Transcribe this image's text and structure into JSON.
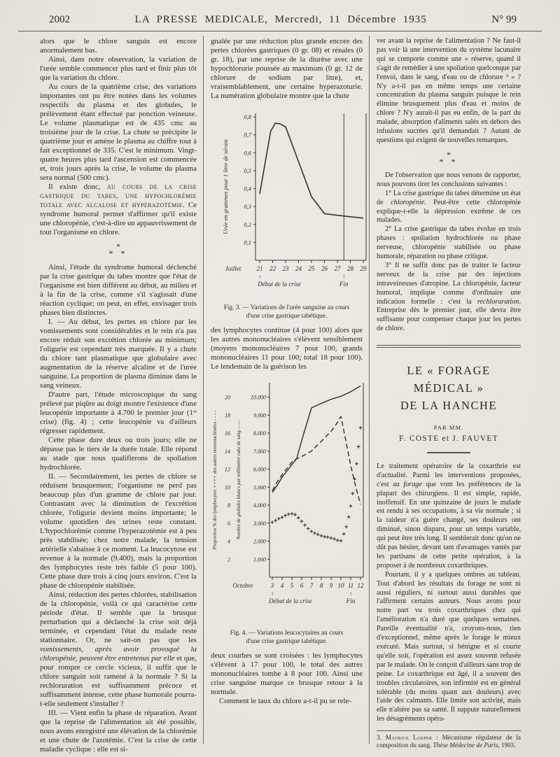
{
  "header": {
    "page_number": "2002",
    "title": "LA PRESSE MEDICALE, Mercredi, 11 Décembre 1935",
    "issue": "N° 99"
  },
  "asterism": {
    "line1": "*",
    "line2": "* *"
  },
  "chart_data": [
    {
      "type": "line",
      "fig_id": "fig3",
      "caption": "Fig. 3. — Variations de l'urée sanguine au cours d'une crise gastrique tabétique.",
      "ylabel": "Urée en grammes pour 1 litre de sérum",
      "y_ticks": [
        "0,1",
        "0,2",
        "0,3",
        "0,4",
        "0,5",
        "0,6",
        "0,7",
        "0,8"
      ],
      "ylim": [
        0,
        0.82
      ],
      "x_prefix": "Juillet",
      "x_ticks": [
        21,
        22,
        23,
        24,
        25,
        26,
        27,
        28,
        29
      ],
      "xlim": [
        21,
        29
      ],
      "end_line_x": 27.5,
      "annotations": {
        "start": "Début de la crise",
        "start_x": 21,
        "end": "Fin",
        "end_x": 27.5,
        "arrow": "↑"
      },
      "grid": false,
      "series": [
        {
          "name": "urée sanguine",
          "style": "solid",
          "points": [
            [
              21,
              0.37
            ],
            [
              21.85,
              0.72
            ],
            [
              22.2,
              0.765
            ],
            [
              22.55,
              0.762
            ],
            [
              23,
              0.745
            ],
            [
              24,
              0.55
            ],
            [
              25,
              0.355
            ],
            [
              26,
              0.26
            ],
            [
              27,
              0.251
            ],
            [
              28,
              0.243
            ],
            [
              29,
              0.235
            ]
          ]
        }
      ]
    },
    {
      "type": "line",
      "fig_id": "fig4",
      "caption": "Fig. 4. — Variations leucocytaires au cours d'une crise gastrique tabétique.",
      "left_axis_outer": {
        "label": "Proportion % des lymphocytes ++++  des autres mononucléaires - - - -",
        "ticks": [
          2,
          4,
          6,
          8,
          10,
          12,
          14,
          16,
          18,
          20
        ],
        "lim": [
          0,
          21.6
        ]
      },
      "left_axis_inner": {
        "label": "Nombre de globules blancs par millimètre cube de sang ——",
        "ticks": [
          "1.000",
          "2.000",
          "3.000",
          "4.000",
          "5.000",
          "6.000",
          "7.000",
          "8.000",
          "9.000",
          "10.000"
        ],
        "lim": [
          0,
          10800
        ]
      },
      "x_prefix": "Octobre",
      "x_ticks": [
        3,
        4,
        5,
        6,
        7,
        8,
        9,
        10,
        11,
        12
      ],
      "xlim": [
        3,
        12
      ],
      "annotations": {
        "start": "Début de la crise",
        "start_x": 3,
        "end": "Fin",
        "end_x": 11,
        "arrow": "↑"
      },
      "grid": false,
      "series": [
        {
          "name": "globules blancs par mm3",
          "style": "solid",
          "scale": "count",
          "points": [
            [
              3,
              4700
            ],
            [
              3.5,
              5100
            ],
            [
              4,
              5550
            ],
            [
              5,
              6250
            ],
            [
              5.5,
              6600
            ],
            [
              6,
              7600
            ],
            [
              7,
              9400
            ],
            [
              7.3,
              9480
            ],
            [
              8,
              9650
            ],
            [
              9,
              9880
            ],
            [
              10,
              10050
            ],
            [
              11,
              10300
            ],
            [
              12,
              10620
            ]
          ]
        },
        {
          "name": "autres mononucléaires %",
          "style": "dashed",
          "scale": "percent",
          "points": [
            [
              3,
              9.6
            ],
            [
              3.5,
              10.6
            ],
            [
              4,
              11.4
            ],
            [
              4.5,
              12.1
            ],
            [
              5,
              12.8
            ],
            [
              5.4,
              13.1
            ],
            [
              6,
              13.4
            ],
            [
              7,
              14.0
            ],
            [
              8,
              15.1
            ],
            [
              9,
              16.2
            ],
            [
              9.6,
              17.1
            ],
            [
              10,
              17.85
            ],
            [
              10.5,
              15.2
            ],
            [
              11,
              12.4
            ],
            [
              11.5,
              10.1
            ],
            [
              12,
              8.1
            ]
          ]
        },
        {
          "name": "lymphocytes %",
          "style": "plus",
          "scale": "percent",
          "points": [
            [
              3,
              6.1
            ],
            [
              3.33,
              6.3
            ],
            [
              3.66,
              6.5
            ],
            [
              4,
              6.65
            ],
            [
              4.33,
              6.85
            ],
            [
              4.66,
              7.0
            ],
            [
              5,
              7.05
            ],
            [
              5.33,
              6.95
            ],
            [
              5.66,
              6.6
            ],
            [
              6,
              6.2
            ],
            [
              6.33,
              5.8
            ],
            [
              6.66,
              5.4
            ],
            [
              7,
              5.1
            ],
            [
              7.33,
              4.9
            ],
            [
              7.66,
              4.75
            ],
            [
              8,
              4.6
            ],
            [
              8.33,
              4.5
            ],
            [
              8.66,
              4.45
            ],
            [
              9,
              4.35
            ],
            [
              9.33,
              4.25
            ],
            [
              9.66,
              4.1
            ],
            [
              10,
              4.05
            ],
            [
              10.3,
              4.8
            ],
            [
              10.55,
              5.6
            ],
            [
              10.8,
              6.7
            ],
            [
              11,
              7.9
            ],
            [
              11.2,
              9.3
            ],
            [
              11.4,
              10.9
            ],
            [
              11.6,
              12.6
            ],
            [
              11.8,
              14.5
            ],
            [
              12,
              16.6
            ]
          ]
        }
      ]
    }
  ],
  "columns": [
    {
      "blocks": [
        {
          "type": "p",
          "noindent": true,
          "text": "alors que le chlore sanguin est encore anormalement bas."
        },
        {
          "type": "p",
          "text": "Ainsi, dans notre observation, la variation de l'urée semble commencer plus tard et finir plus tôt que la variation du chlore."
        },
        {
          "type": "p",
          "text": "Au cours de la quatrième crise, des variations importantes ont pu être notées dans les volumes respectifs du plasma et des globules, le prélèvement étant effectué par ponction veineuse. Le volume plasmatique est de 435 cmc au troisième jour de la crise. La chute se précipite le quatrième jour et amène le plasma au chiffre tout à fait exceptionnel de 335. C'est le minimum. Vingt-quatre heures plus tard l'ascension est commencée et, trois jours après la crise, le volume du plasma sera normal (500 cmc)."
        },
        {
          "type": "p",
          "text": "Il existe donc, {sc}au cours de la crise gastrique du tabes, une hypochlorémie totale avec alcalose et hyperazotémie.{/sc} Ce syndrome humoral permet d'affirmer qu'il existe une chloropénie, c'est-à-dire un appauvrissement de tout l'organisme en chlore."
        },
        {
          "type": "asterism"
        },
        {
          "type": "p",
          "text": "Ainsi, l'étude du syndrome humoral déclenché par la crise gastrique du tabes montre que l'état de l'organisme est bien différent au début, au milieu et à la fin de la crise, comme s'il s'agissait d'une réaction cyclique; on peut, en effet, envisager trois phases bien distinctes."
        },
        {
          "type": "p",
          "text": "I. — Au début, les pertes en chlore par les vomissements sont considérables et le rein n'a pas encore réduit son excrétion chlorée au minimum; l'oligurie est cependant très marquée. Il y a chute du chlore tant plasmatique que globulaire avec augmentation de la réserve alcaline et de l'urée sanguine. La proportion de plasma diminue dans le sang veineux."
        },
        {
          "type": "p",
          "text": "D'autre part, l'étude microscopique du sang prélevé par piqûre au doigt montre l'existence d'une leucopénie importante à 4.700 le premier jour (1ʳᵉ crise) (fig. 4) ; cette leucopénie va d'ailleurs régresser rapidement."
        },
        {
          "type": "p",
          "text": "Cette phase dure deux ou trois jours; elle ne dépasse pas le tiers de la durée totale. Elle répond au stade que nous qualifierons de spoliation hydrochlorée."
        },
        {
          "type": "p",
          "text": "II. — Secondairement, les pertes de chlore se réduisent brusquement; l'organisme ne perd pas beaucoup plus d'un gramme de chlore par jour. Contrastant avec la diminution de l'excrétion chlorée, l'oligurie devient moins importante; le volume quotidien des urines reste constant. L'hypochlorémie comme l'hyperazotémie est à peu près stabilisée; chez notre malade, la tension artérielle s'abaisse à ce moment. La leucocytose est revenue à la normale (9.400), mais la proportion des lymphocytes reste très faible (5 pour 100). Cette phase dure trois à cinq jours environ. C'est la phase de chloropénie stabilisée."
        },
        {
          "type": "p",
          "text": "Ainsi, réduction des pertes chlorées, stabilisation de la chloropénie, voilà ce qui caractérise cette période d'état. Il semble que la brusque perturbation qui a déclanché la crise soit déjà terminée, et cependant l'état du malade reste stationnaire. Or, ne sait-on pas que les {i}vomissements, après avoir provoqué la chloropénie, peuvent être entretenus par elle{/i} et que, pour rompre ce cercle vicieux, il suffit que le chlore sanguin soit ramené à la normale ? Si la rechloruration est suffisamment précoce et suffisamment intense, cette phase humorale pourra-t-elle seulement s'installer ?"
        },
        {
          "type": "p",
          "text": "III. — Vient enfin la phase de réparation. Avant que la reprise de l'alimentation ait été possible, nous avons enregistré une élévation de la chlorémie et une chute de l'azotémie. C'est la crise de cette maladie cyclique : elle est si-"
        }
      ]
    },
    {
      "blocks": [
        {
          "type": "p",
          "noindent": true,
          "text": "gnalée par une réduction plus grande encore des pertes chlorées gastriques (0 gr. 08) et rénales (0 gr. 18), par une reprise de la diurèse avec une hypochlorurie poussée au maximum (0 gr. 12 de chlorure de sodium par litre), et, vraisemblablement, une certaine hyperazoturie. La numération globulaire montre que la chute"
        },
        {
          "type": "figure",
          "chart": 0
        },
        {
          "type": "p",
          "noindent": true,
          "text": "des lymphocytes continue (4 pour 100) alors que les autres mononucléaires s'élèvent sensiblement (moyens mononucléaires 7 pour 100, grands mononucléaires 11 pour 100; total 18 pour 100). Le lendemain de la guérison les"
        },
        {
          "type": "figure",
          "chart": 1
        },
        {
          "type": "p",
          "noindent": true,
          "text": "deux courbes se sont croisées : les lymphocytes s'élèvent à 17 pour 100, le total des autres mononucléaires tombe à 8 pour 100. Ainsi une crise sanguine marque ce brusque retour à la normale."
        },
        {
          "type": "p",
          "text": "Comment le taux du chlore a-t-il pu se rele-"
        }
      ]
    },
    {
      "blocks": [
        {
          "type": "p",
          "noindent": true,
          "text": "ver avant la reprise de l'alimentation ? Ne faut-il pas voir là une intervention du système lacunaire qui se comporte comme une « réserve, quand il s'agit de remédier à une spoliation quelconque par l'envoi, dans le sang, d'eau ou de chlorure ³ » ? N'y a-t-il pas en même temps une certaine concentration du plasma sanguin puisque le rein élimine brusquement plus d'eau et moins de chlore ? N'y aurait-il pas eu enfin, de la part du malade, absorption d'aliments salés en dehors des infusions sucrées qu'il demandait ? Autant de questions qui exigent de nouvelles remarques."
        },
        {
          "type": "asterism"
        },
        {
          "type": "p",
          "text": "De l'observation que nous venons de rapporter, nous pouvons tirer les conclusions suivantes :"
        },
        {
          "type": "p",
          "text": "1° La crise gastrique du tabes détermine un état de {i}chloropénie{/i}. Peut-être cette chloropénie explique-t-elle la dépression extrême de ces malades."
        },
        {
          "type": "p",
          "text": "2° La crise gastrique du tabes évolue en trois phases : spoliation hydrochlorée ou phase nerveuse, chloropénie stabilisée ou phase humorale, réparation ou phase critique."
        },
        {
          "type": "p",
          "text": "3° Il ne suffit donc pas de traiter le facteur nerveux de la crise par des injections intraveineuses d'atropine. La chloropénie, facteur humoral, implique comme d'ordinaire une indication formelle : c'est la {i}rechloruration{/i}. Entreprise dès le premier jour, elle devra être suffisante pour compenser chaque jour les pertes de chlore."
        },
        {
          "type": "heavy_rule"
        },
        {
          "type": "section_title",
          "lines": [
            "LE « FORAGE MÉDICAL »",
            "DE LA HANCHE"
          ]
        },
        {
          "type": "byline",
          "par": "PAR MM.",
          "authors": "F. COSTE et J. FAUVET"
        },
        {
          "type": "short_rule"
        },
        {
          "type": "p",
          "noindent": true,
          "text": "Le traitement opératoire de la coxarthrie est d'actualité. Parmi les interventions proposées, c'est au {i}forage{/i} que vont les préférences de la plupart des chirurgiens. Il est simple, rapide, inoffensif. En une quinzaine de jours le malade est rendu à ses occupations, à sa vie normale ; si la raideur n'a guère changé, ses douleurs ont diminué, sinon disparu, pour un temps variable, qui peut être très long. Il semblerait donc qu'on ne dût pas hésiter, devant tant d'avantages vantés par les partisans de cette petite opération, à la proposer à de nombreux coxarthriques."
        },
        {
          "type": "p",
          "text": "Pourtant, il y a quelques ombres au tableau. Tout d'abord les résultats du forage ne sont ni aussi réguliers, ni surtout aussi durables que l'affirment certains auteurs. Nous avons pour notre part vu trois coxarthriques chez qui l'amélioration n'a duré que quelques semaines. Pareille éventualité n'a, croyons-nous, rien d'exceptionnel, même après le forage le mieux exécuté. Mais surtout, si bénigne et si courte qu'elle soit, l'opération est assez souvent refusée par le malade. On le conçoit d'ailleurs sans trop de peine. Le coxarthrique est âgé, il a souvent des troubles circulatoires, son infirmité est en général tolérable (du moins quant aux douleurs) avec l'aide des calmants. Elle limite son activité, mais elle n'altère pas sa santé. Il suppute naturellement les désagréments opéra-"
        },
        {
          "type": "footnote",
          "text": "3. {sc}Maurice Loeper{/sc} : Mécanisme régulateur de la composition du sang. {i}Thèse Médecine de Paris{/i}, 1903."
        }
      ]
    }
  ]
}
